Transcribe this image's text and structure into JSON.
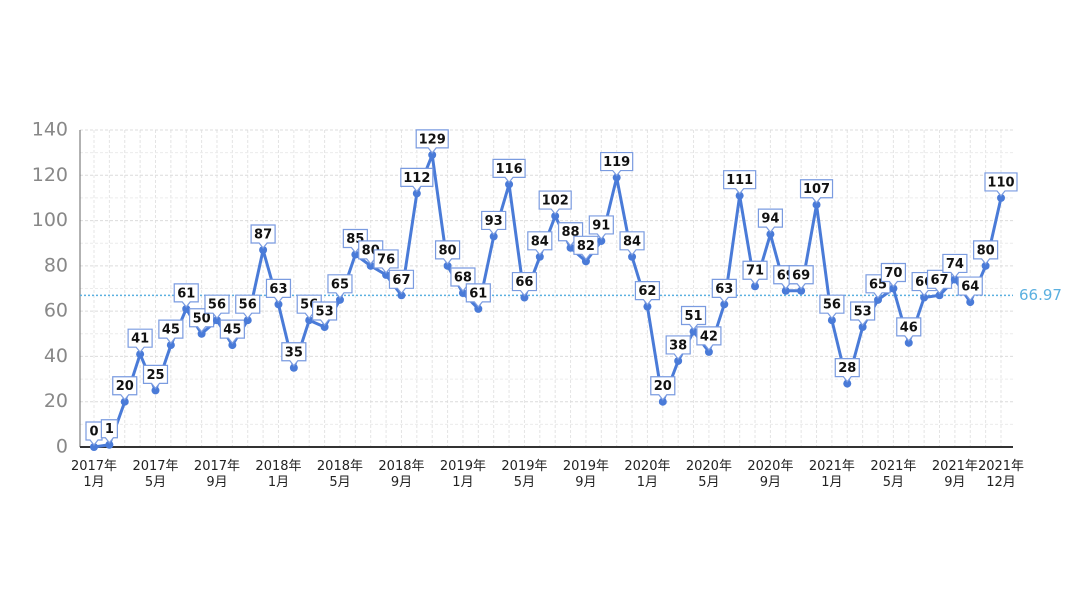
{
  "chart_data": {
    "type": "line",
    "categories": [
      "2017年\n1月",
      null,
      null,
      null,
      "2017年\n5月",
      null,
      null,
      null,
      "2017年\n9月",
      null,
      null,
      null,
      "2018年\n1月",
      null,
      null,
      null,
      "2018年\n5月",
      null,
      null,
      null,
      "2018年\n9月",
      null,
      null,
      null,
      "2019年\n1月",
      null,
      null,
      null,
      "2019年\n5月",
      null,
      null,
      null,
      "2019年\n9月",
      null,
      null,
      null,
      "2020年\n1月",
      null,
      null,
      null,
      "2020年\n5月",
      null,
      null,
      null,
      "2020年\n9月",
      null,
      null,
      null,
      "2021年\n1月",
      null,
      null,
      null,
      "2021年\n5月",
      null,
      null,
      null,
      "2021年\n9月",
      null,
      null,
      "2021年\n12月"
    ],
    "values": [
      0,
      1,
      20,
      41,
      25,
      45,
      61,
      50,
      56,
      45,
      56,
      87,
      63,
      35,
      56,
      53,
      65,
      85,
      80,
      76,
      67,
      112,
      129,
      80,
      68,
      61,
      93,
      116,
      66,
      84,
      102,
      88,
      82,
      91,
      119,
      84,
      62,
      20,
      38,
      51,
      42,
      63,
      111,
      71,
      94,
      69,
      69,
      107,
      56,
      28,
      53,
      65,
      70,
      46,
      66,
      67,
      74,
      64,
      80,
      110
    ],
    "color": "#4a7bd8",
    "average": 66.97,
    "average_color": "#5bb0e0",
    "ylim": [
      0,
      140
    ],
    "yticks": [
      0,
      20,
      40,
      60,
      80,
      100,
      120,
      140
    ],
    "grid": true
  }
}
